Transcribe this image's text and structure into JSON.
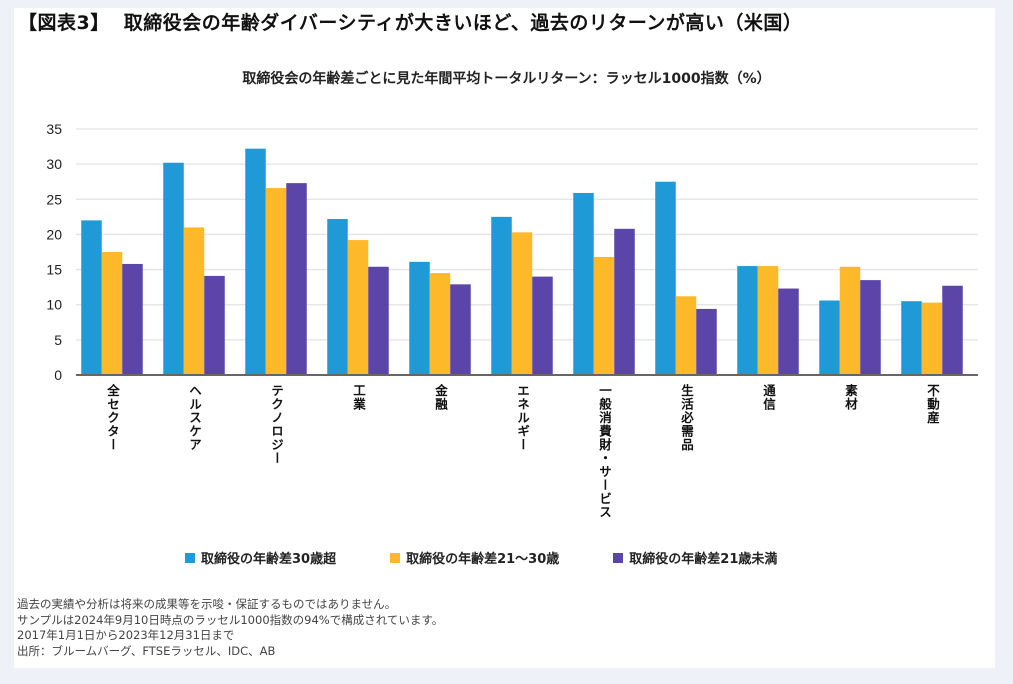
{
  "figure": {
    "tag": "【図表3】",
    "title": "取締役会の年齢ダイバーシティが大きいほど、過去のリターンが高い（米国）"
  },
  "chart_data": {
    "type": "bar",
    "title": "取締役会の年齢差ごとに見た年間平均トータルリターン：ラッセル1000指数（%）",
    "xlabel": "",
    "ylabel": "",
    "ylim": [
      0,
      35
    ],
    "yticks": [
      0,
      5,
      10,
      15,
      20,
      25,
      30,
      35
    ],
    "grid": true,
    "legend_position": "bottom",
    "categories": [
      "全セクター",
      "ヘルスケア",
      "テクノロジー",
      "工業",
      "金融",
      "エネルギー",
      "一般消費財・サービス",
      "生活必需品",
      "通信",
      "素材",
      "不動産"
    ],
    "series": [
      {
        "name": "取締役の年齢差30歳超",
        "color": "#1f9ad6",
        "values": [
          22.0,
          30.2,
          32.2,
          22.2,
          16.1,
          22.5,
          25.9,
          27.5,
          15.5,
          10.6,
          10.5
        ]
      },
      {
        "name": "取締役の年齢差21～30歳",
        "color": "#fdb92a",
        "values": [
          17.5,
          21.0,
          26.6,
          19.2,
          14.5,
          20.3,
          16.8,
          11.2,
          15.5,
          15.4,
          10.3
        ]
      },
      {
        "name": "取締役の年齢差21歳未満",
        "color": "#5b45a8",
        "values": [
          15.8,
          14.1,
          27.3,
          15.4,
          12.9,
          14.0,
          20.8,
          9.4,
          12.3,
          13.5,
          12.7
        ]
      }
    ]
  },
  "notes": [
    "過去の実績や分析は将来の成果等を示唆・保証するものではありません。",
    "サンプルは2024年9月10日時点のラッセル1000指数の94%で構成されています。",
    "2017年1月1日から2023年12月31日まで",
    "出所：ブルームバーグ、FTSEラッセル、IDC、AB"
  ],
  "colors": {
    "background": "#eef2f8",
    "panel": "#ffffff",
    "gridline": "#e3e3e3",
    "axis": "#666666"
  }
}
